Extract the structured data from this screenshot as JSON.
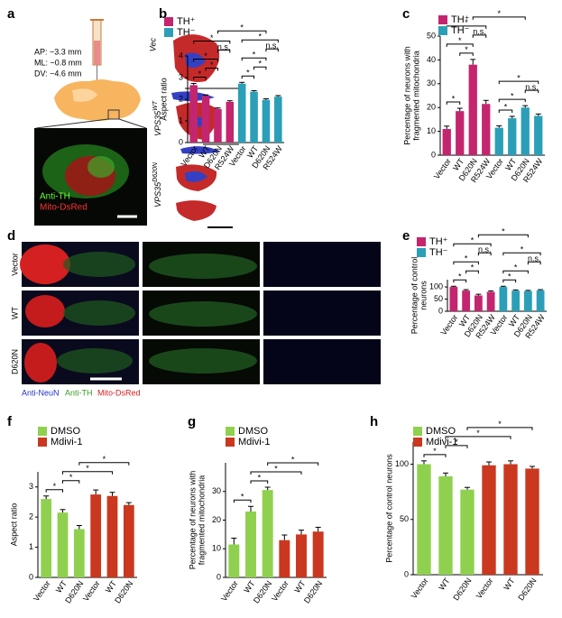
{
  "figures": {
    "a": {
      "panel": "a",
      "coords": [
        "AP: −3.3 mm",
        "ML: −0.8 mm",
        "DV: −4.6 mm"
      ],
      "stain1": "Anti-TH",
      "stain2": "Mito-DsRed",
      "rows": [
        {
          "name": "Vec"
        },
        {
          "name": "VPS35",
          "sup": "WT"
        },
        {
          "name": "VPS35",
          "sup": "D620N"
        }
      ]
    },
    "d": {
      "panel": "d",
      "rows": [
        "Vector",
        "WT",
        "D620N"
      ],
      "channels": [
        "Anti-NeuN",
        "Anti-TH",
        "Mito-DsRed"
      ]
    }
  },
  "chart_data": [
    {
      "type": "bar",
      "panel": "b",
      "ylabel": [
        "Aspect ratio"
      ],
      "ylim": [
        0,
        4
      ],
      "yticks": [
        0,
        1,
        2,
        3,
        4
      ],
      "categories": [
        "Vector",
        "WT",
        "D620N",
        "R524W",
        "Vector",
        "WT",
        "D620N",
        "R524W"
      ],
      "series": [
        {
          "name": "TH⁺",
          "color": "#c4256f",
          "values": [
            2.65,
            2.15,
            1.55,
            1.88,
            null,
            null,
            null,
            null
          ],
          "errors": [
            0.08,
            0.05,
            0.05,
            0.05,
            null,
            null,
            null,
            null
          ]
        },
        {
          "name": "TH⁻",
          "color": "#2b9fb7",
          "values": [
            null,
            null,
            null,
            null,
            2.72,
            2.35,
            1.97,
            2.12
          ],
          "errors": [
            null,
            null,
            null,
            null,
            0.06,
            0.05,
            0.05,
            0.05
          ]
        }
      ],
      "annotations": [
        {
          "label": "*",
          "bars": [
            0,
            1
          ]
        },
        {
          "label": "*",
          "bars": [
            1,
            2
          ]
        },
        {
          "label": "*",
          "bars": [
            0,
            2
          ]
        },
        {
          "label": "n.s.",
          "bars": [
            2,
            3
          ]
        },
        {
          "label": "*",
          "bars": [
            0,
            3
          ]
        },
        {
          "label": "*",
          "bars": [
            4,
            5
          ]
        },
        {
          "label": "*",
          "bars": [
            5,
            6
          ]
        },
        {
          "label": "*",
          "bars": [
            4,
            6
          ]
        },
        {
          "label": "n.s.",
          "bars": [
            6,
            7
          ]
        },
        {
          "label": "*",
          "bars": [
            4,
            7
          ]
        },
        {
          "label": "*",
          "bars": [
            2,
            6
          ]
        }
      ]
    },
    {
      "type": "bar",
      "panel": "c",
      "ylabel": [
        "Percentage of neurons with",
        "fragmented mitochondria"
      ],
      "ylim": [
        0,
        50
      ],
      "yticks": [
        0,
        10,
        20,
        30,
        40,
        50
      ],
      "categories": [
        "Vector",
        "WT",
        "D620N",
        "R524W",
        "Vector",
        "WT",
        "D620N",
        "R524W"
      ],
      "series": [
        {
          "name": "TH⁺",
          "color": "#c4256f",
          "values": [
            11,
            18.5,
            38,
            21.5,
            null,
            null,
            null,
            null
          ],
          "errors": [
            1.2,
            1.2,
            2.2,
            1.5,
            null,
            null,
            null,
            null
          ]
        },
        {
          "name": "TH⁻",
          "color": "#2b9fb7",
          "values": [
            null,
            null,
            null,
            null,
            11.5,
            15.5,
            20,
            16.5
          ],
          "errors": [
            null,
            null,
            null,
            null,
            0.8,
            0.8,
            0.8,
            0.8
          ]
        }
      ],
      "annotations": [
        {
          "label": "*",
          "bars": [
            0,
            1
          ]
        },
        {
          "label": "*",
          "bars": [
            1,
            2
          ]
        },
        {
          "label": "*",
          "bars": [
            0,
            2
          ]
        },
        {
          "label": "n.s.",
          "bars": [
            2,
            3
          ]
        },
        {
          "label": "*",
          "bars": [
            0,
            3
          ]
        },
        {
          "label": "*",
          "bars": [
            4,
            5
          ]
        },
        {
          "label": "*",
          "bars": [
            4,
            6
          ]
        },
        {
          "label": "n.s.",
          "bars": [
            6,
            7
          ]
        },
        {
          "label": "*",
          "bars": [
            4,
            7
          ]
        },
        {
          "label": "*",
          "bars": [
            2,
            6
          ]
        }
      ]
    },
    {
      "type": "bar",
      "panel": "e",
      "ylabel": [
        "Percentage of control",
        "neurons"
      ],
      "ylim": [
        0,
        130
      ],
      "yticks": [
        0,
        50,
        100
      ],
      "categories": [
        "Vector",
        "WT",
        "D620N",
        "R524W",
        "Vector",
        "WT",
        "D620N",
        "R524W"
      ],
      "series": [
        {
          "name": "TH⁺",
          "color": "#c4256f",
          "values": [
            100,
            85,
            65,
            80,
            null,
            null,
            null,
            null
          ],
          "errors": [
            3,
            4,
            5,
            4,
            null,
            null,
            null,
            null
          ]
        },
        {
          "name": "TH⁻",
          "color": "#2b9fb7",
          "values": [
            null,
            null,
            null,
            null,
            100,
            85,
            83,
            86
          ],
          "errors": [
            null,
            null,
            null,
            null,
            3,
            3,
            3,
            3
          ]
        }
      ],
      "annotations": [
        {
          "label": "*",
          "bars": [
            0,
            1
          ]
        },
        {
          "label": "*",
          "bars": [
            1,
            2
          ]
        },
        {
          "label": "*",
          "bars": [
            0,
            2
          ]
        },
        {
          "label": "n.s.",
          "bars": [
            2,
            3
          ]
        },
        {
          "label": "*",
          "bars": [
            0,
            3
          ]
        },
        {
          "label": "*",
          "bars": [
            4,
            5
          ]
        },
        {
          "label": "*",
          "bars": [
            4,
            6
          ]
        },
        {
          "label": "n.s.",
          "bars": [
            6,
            7
          ]
        },
        {
          "label": "*",
          "bars": [
            4,
            7
          ]
        },
        {
          "label": "*",
          "bars": [
            2,
            6
          ]
        }
      ]
    },
    {
      "type": "bar",
      "panel": "f",
      "ylabel": [
        "Aspect ratio"
      ],
      "ylim": [
        0,
        3.5
      ],
      "yticks": [
        0,
        1,
        2,
        3
      ],
      "categories": [
        "Vector",
        "WT",
        "D620N",
        "Vector",
        "WT",
        "D620N"
      ],
      "series": [
        {
          "name": "DMSO",
          "color": "#8fd14f",
          "values": [
            2.6,
            2.15,
            1.6,
            null,
            null,
            null
          ],
          "errors": [
            0.1,
            0.1,
            0.12,
            null,
            null,
            null
          ]
        },
        {
          "name": "Mdivi-1",
          "color": "#c9381f",
          "values": [
            null,
            null,
            null,
            2.75,
            2.7,
            2.4
          ],
          "errors": [
            null,
            null,
            null,
            0.15,
            0.12,
            0.08
          ]
        }
      ],
      "annotations": [
        {
          "label": "*",
          "bars": [
            0,
            1
          ]
        },
        {
          "label": "*",
          "bars": [
            1,
            2
          ]
        },
        {
          "label": "*",
          "bars": [
            1,
            4
          ]
        },
        {
          "label": "*",
          "bars": [
            2,
            5
          ]
        }
      ]
    },
    {
      "type": "bar",
      "panel": "g",
      "ylabel": [
        "Percentage of neurons with",
        "fragmented mitochondria"
      ],
      "ylim": [
        0,
        40
      ],
      "yticks": [
        0,
        10,
        20,
        30
      ],
      "categories": [
        "Vector",
        "WT",
        "D620N",
        "Vector",
        "WT",
        "D620N"
      ],
      "series": [
        {
          "name": "DMSO",
          "color": "#8fd14f",
          "values": [
            11.5,
            23,
            30.5,
            null,
            null,
            null
          ],
          "errors": [
            2.2,
            1.8,
            1,
            null,
            null,
            null
          ]
        },
        {
          "name": "Mdivi-1",
          "color": "#c9381f",
          "values": [
            null,
            null,
            null,
            13,
            15,
            16
          ],
          "errors": [
            null,
            null,
            null,
            1.8,
            1.5,
            1.5
          ]
        }
      ],
      "annotations": [
        {
          "label": "*",
          "bars": [
            0,
            1
          ]
        },
        {
          "label": "*",
          "bars": [
            1,
            2
          ]
        },
        {
          "label": "*",
          "bars": [
            1,
            4
          ]
        },
        {
          "label": "*",
          "bars": [
            2,
            5
          ]
        }
      ]
    },
    {
      "type": "bar",
      "panel": "h",
      "ylabel": [
        "Percentage of control neurons"
      ],
      "ylim": [
        0,
        120
      ],
      "yticks": [
        0,
        50,
        100
      ],
      "categories": [
        "Vector",
        "WT",
        "D620N",
        "Vector",
        "WT",
        "D620N"
      ],
      "series": [
        {
          "name": "DMSO",
          "color": "#8fd14f",
          "values": [
            100,
            89,
            77,
            null,
            null,
            null
          ],
          "errors": [
            3,
            3,
            2,
            null,
            null,
            null
          ]
        },
        {
          "name": "Mdivi-1",
          "color": "#c9381f",
          "values": [
            null,
            null,
            null,
            99,
            100,
            96
          ],
          "errors": [
            null,
            null,
            null,
            3,
            3,
            2
          ]
        }
      ],
      "annotations": [
        {
          "label": "*",
          "bars": [
            0,
            1
          ]
        },
        {
          "label": "*",
          "bars": [
            1,
            2
          ]
        },
        {
          "label": "*",
          "bars": [
            1,
            4
          ]
        },
        {
          "label": "*",
          "bars": [
            2,
            5
          ]
        }
      ]
    }
  ]
}
